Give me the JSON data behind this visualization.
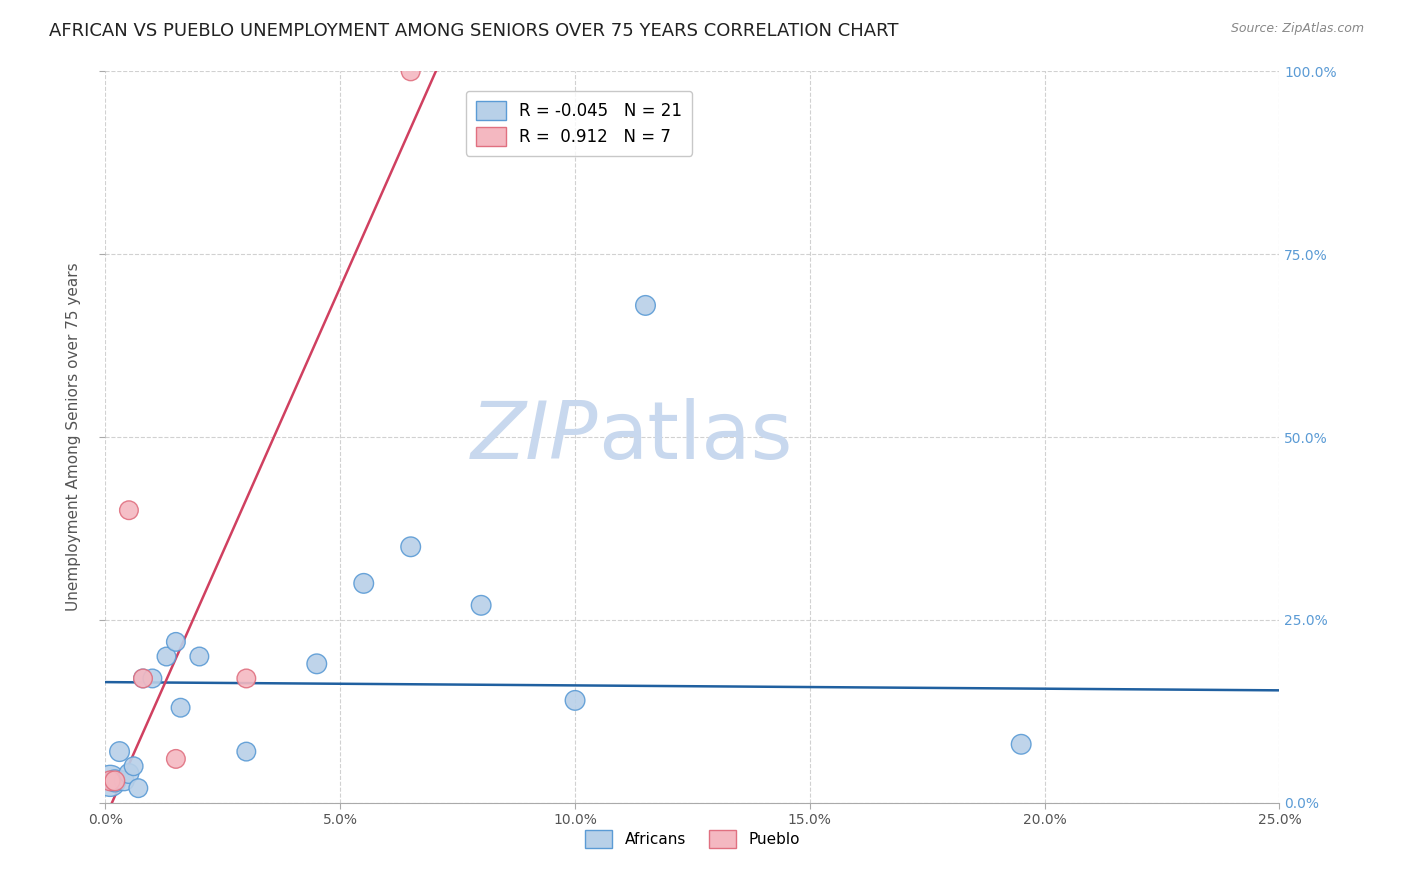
{
  "title": "AFRICAN VS PUEBLO UNEMPLOYMENT AMONG SENIORS OVER 75 YEARS CORRELATION CHART",
  "source": "Source: ZipAtlas.com",
  "ylabel": "Unemployment Among Seniors over 75 years",
  "xlim": [
    0.0,
    0.25
  ],
  "ylim": [
    0.0,
    1.0
  ],
  "xticks": [
    0.0,
    0.05,
    0.1,
    0.15,
    0.2,
    0.25
  ],
  "yticks": [
    0.0,
    0.25,
    0.5,
    0.75,
    1.0
  ],
  "ytick_labels": [
    "0.0%",
    "25.0%",
    "50.0%",
    "75.0%",
    "100.0%"
  ],
  "xtick_labels": [
    "0.0%",
    "5.0%",
    "10.0%",
    "15.0%",
    "20.0%",
    "25.0%"
  ],
  "africans_x": [
    0.001,
    0.002,
    0.003,
    0.004,
    0.005,
    0.006,
    0.007,
    0.008,
    0.01,
    0.013,
    0.015,
    0.016,
    0.02,
    0.03,
    0.045,
    0.055,
    0.065,
    0.08,
    0.1,
    0.115,
    0.195
  ],
  "africans_y": [
    0.03,
    0.03,
    0.07,
    0.03,
    0.04,
    0.05,
    0.02,
    0.17,
    0.17,
    0.2,
    0.22,
    0.13,
    0.2,
    0.07,
    0.19,
    0.3,
    0.35,
    0.27,
    0.14,
    0.68,
    0.08
  ],
  "africans_size": [
    500,
    250,
    200,
    200,
    200,
    180,
    180,
    180,
    180,
    180,
    180,
    180,
    180,
    180,
    200,
    200,
    200,
    200,
    200,
    200,
    200
  ],
  "pueblo_x": [
    0.001,
    0.002,
    0.005,
    0.008,
    0.015,
    0.03,
    0.065
  ],
  "pueblo_y": [
    0.03,
    0.03,
    0.4,
    0.17,
    0.06,
    0.17,
    1.0
  ],
  "pueblo_size": [
    200,
    200,
    180,
    180,
    180,
    180,
    180
  ],
  "africans_color": "#b8d0e8",
  "pueblo_color": "#f4b8c1",
  "africans_edge_color": "#5b9bd5",
  "pueblo_edge_color": "#e07080",
  "trend_african_color": "#2060a0",
  "trend_pueblo_color": "#d04060",
  "trend_african_slope": -0.045,
  "trend_african_intercept": 0.165,
  "trend_pueblo_slope": 14.5,
  "trend_pueblo_intercept": -0.02,
  "R_african": -0.045,
  "N_african": 21,
  "R_pueblo": 0.912,
  "N_pueblo": 7,
  "watermark_zip": "ZIP",
  "watermark_atlas": "atlas",
  "watermark_color": "#c8d8ee",
  "background_color": "#ffffff",
  "grid_color": "#cccccc",
  "title_fontsize": 13,
  "axis_label_fontsize": 11,
  "tick_fontsize": 10,
  "legend_fontsize": 12,
  "right_axis_color": "#5b9bd5"
}
